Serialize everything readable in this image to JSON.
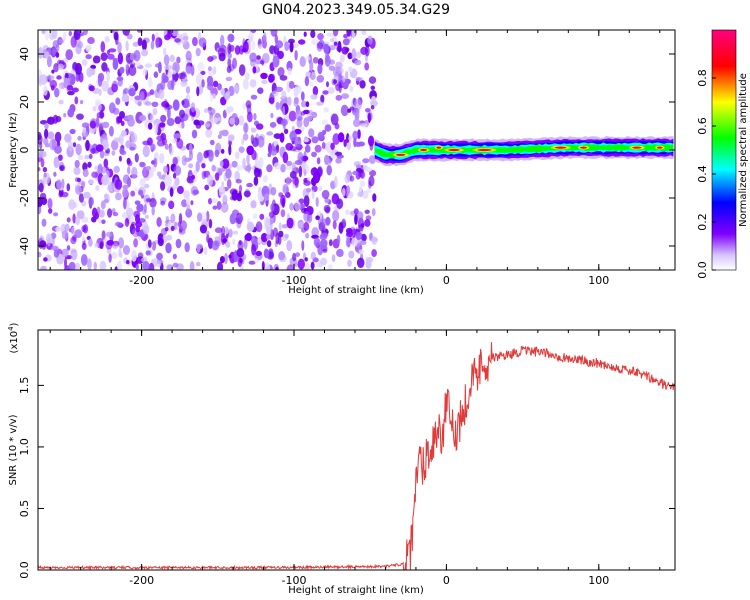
{
  "title": "GN04.2023.349.05.34.G29",
  "chart_data": [
    {
      "type": "heatmap",
      "title": "GN04.2023.349.05.34.G29",
      "xlabel": "Height of straight line (km)",
      "ylabel": "Frequency (Hz)",
      "xlim": [
        -268,
        150
      ],
      "ylim": [
        -50,
        50
      ],
      "x_ticks": [
        -200,
        -100,
        0,
        100
      ],
      "y_ticks": [
        -40,
        -20,
        0,
        20,
        40
      ],
      "x_tick_labels": [
        "-200",
        "-100",
        "0",
        "100"
      ],
      "y_tick_labels": [
        "-40",
        "-20",
        "0",
        "20",
        "40"
      ],
      "noise_region_x": [
        -268,
        -47
      ],
      "signal_center_freq_hz": [
        {
          "x": -47,
          "y": 0
        },
        {
          "x": -40,
          "y": -2
        },
        {
          "x": -30,
          "y": -2
        },
        {
          "x": -20,
          "y": 0
        },
        {
          "x": 0,
          "y": 0
        },
        {
          "x": 40,
          "y": 0
        },
        {
          "x": 80,
          "y": 1
        },
        {
          "x": 120,
          "y": 1
        },
        {
          "x": 150,
          "y": 1
        }
      ],
      "colorbar": {
        "label": "Normalized spectral amplitude",
        "range": [
          0,
          1
        ],
        "ticks": [
          0.0,
          0.2,
          0.4,
          0.6,
          0.8
        ],
        "tick_labels": [
          "0.0",
          "0.2",
          "0.4",
          "0.6",
          "0.8"
        ],
        "colors": [
          "#ffffff",
          "#8000ff",
          "#0000ff",
          "#00ffff",
          "#00ff00",
          "#ffff00",
          "#ff0000",
          "#ff0080"
        ]
      },
      "grid": false
    },
    {
      "type": "line",
      "xlabel": "Height of straight line (km)",
      "ylabel": "SNR (10 * v/v)",
      "scale_label": "(x10",
      "scale_exp": "4",
      "scale_close": ")",
      "xlim": [
        -268,
        150
      ],
      "ylim": [
        0,
        1.95
      ],
      "x_ticks": [
        -200,
        -100,
        0,
        100
      ],
      "y_ticks": [
        0.0,
        0.5,
        1.0,
        1.5
      ],
      "x_tick_labels": [
        "-200",
        "-100",
        "0",
        "100"
      ],
      "y_tick_labels": [
        "0.0",
        "0.5",
        "1.0",
        "1.5"
      ],
      "color": "#e03a3a",
      "series": [
        {
          "x": [
            -268,
            -200,
            -100,
            -40,
            -28,
            -24,
            -22,
            -20,
            -18,
            -15,
            -12,
            -10,
            -8,
            -5,
            -3,
            0,
            5,
            10,
            15,
            20,
            25,
            30,
            40,
            50,
            60,
            70,
            80,
            90,
            100,
            110,
            120,
            130,
            140,
            150
          ],
          "y": [
            0.02,
            0.02,
            0.02,
            0.03,
            0.05,
            0.1,
            0.3,
            0.7,
            0.9,
            0.85,
            1.0,
            0.95,
            1.1,
            1.15,
            1.05,
            1.35,
            1.1,
            1.25,
            1.5,
            1.6,
            1.7,
            1.72,
            1.75,
            1.78,
            1.77,
            1.75,
            1.72,
            1.7,
            1.68,
            1.65,
            1.62,
            1.58,
            1.52,
            1.47
          ]
        }
      ],
      "grid": false
    }
  ]
}
